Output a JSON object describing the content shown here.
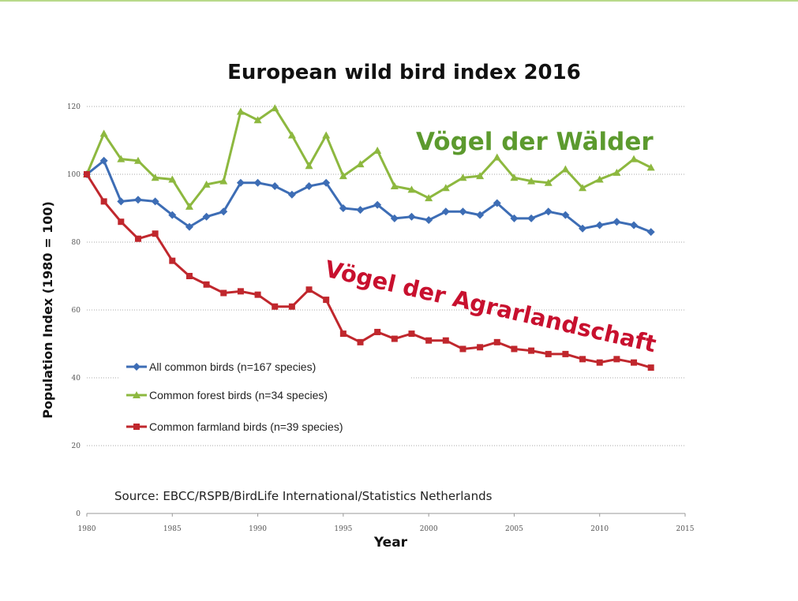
{
  "chart_data": {
    "type": "line",
    "title": "European wild bird index 2016",
    "x_label": "Year",
    "y_label": "Population Index (1980 = 100)",
    "source": "Source: EBCC/RSPB/BirdLife  International/Statistics  Netherlands",
    "annotations": [
      {
        "text": "Vögel der Wälder",
        "color": "#5c9a2e"
      },
      {
        "text": "Vögel der Agrarlandschaft",
        "color": "#c8102e"
      }
    ],
    "x": [
      1980,
      1981,
      1982,
      1983,
      1984,
      1985,
      1986,
      1987,
      1988,
      1989,
      1990,
      1991,
      1992,
      1993,
      1994,
      1995,
      1996,
      1997,
      1998,
      1999,
      2000,
      2001,
      2002,
      2003,
      2004,
      2005,
      2006,
      2007,
      2008,
      2009,
      2010,
      2011,
      2012,
      2013
    ],
    "series": [
      {
        "name": "All common birds (n=167 species)",
        "color": "#3d6db5",
        "marker": "diamond",
        "values": [
          100,
          104,
          92,
          92.5,
          92,
          88,
          84.5,
          87.5,
          89,
          97.5,
          97.5,
          96.5,
          94,
          96.5,
          97.5,
          90,
          89.5,
          91,
          87,
          87.5,
          86.5,
          89,
          89,
          88,
          91.5,
          87,
          87,
          89,
          88,
          84,
          85,
          86,
          85,
          83
        ]
      },
      {
        "name": "Common forest birds (n=34 species)",
        "color": "#8db83f",
        "marker": "triangle",
        "values": [
          100,
          112,
          104.5,
          104,
          99,
          98.5,
          90.5,
          97,
          98,
          118.5,
          116,
          119.5,
          111.5,
          102.5,
          111.5,
          99.5,
          103,
          107,
          96.5,
          95.5,
          93,
          96,
          99,
          99.5,
          105,
          99,
          98,
          97.5,
          101.5,
          96,
          98.5,
          100.5,
          104.5,
          102
        ]
      },
      {
        "name": "Common farmland birds (n=39 species)",
        "color": "#c0272d",
        "marker": "square",
        "values": [
          100,
          92,
          86,
          81,
          82.5,
          74.5,
          70,
          67.5,
          65,
          65.5,
          64.5,
          61,
          61,
          66,
          63,
          53,
          50.5,
          53.5,
          51.5,
          53,
          51,
          51,
          48.5,
          49,
          50.5,
          48.5,
          48,
          47,
          47,
          45.5,
          44.5,
          45.5,
          44.5,
          43
        ]
      }
    ],
    "xlim": [
      1980,
      2015
    ],
    "xticks": [
      1980,
      1985,
      1990,
      1995,
      2000,
      2005,
      2010,
      2015
    ],
    "ylim": [
      0,
      120
    ],
    "yticks": [
      0,
      20,
      40,
      60,
      80,
      100,
      120
    ],
    "grid": true
  }
}
